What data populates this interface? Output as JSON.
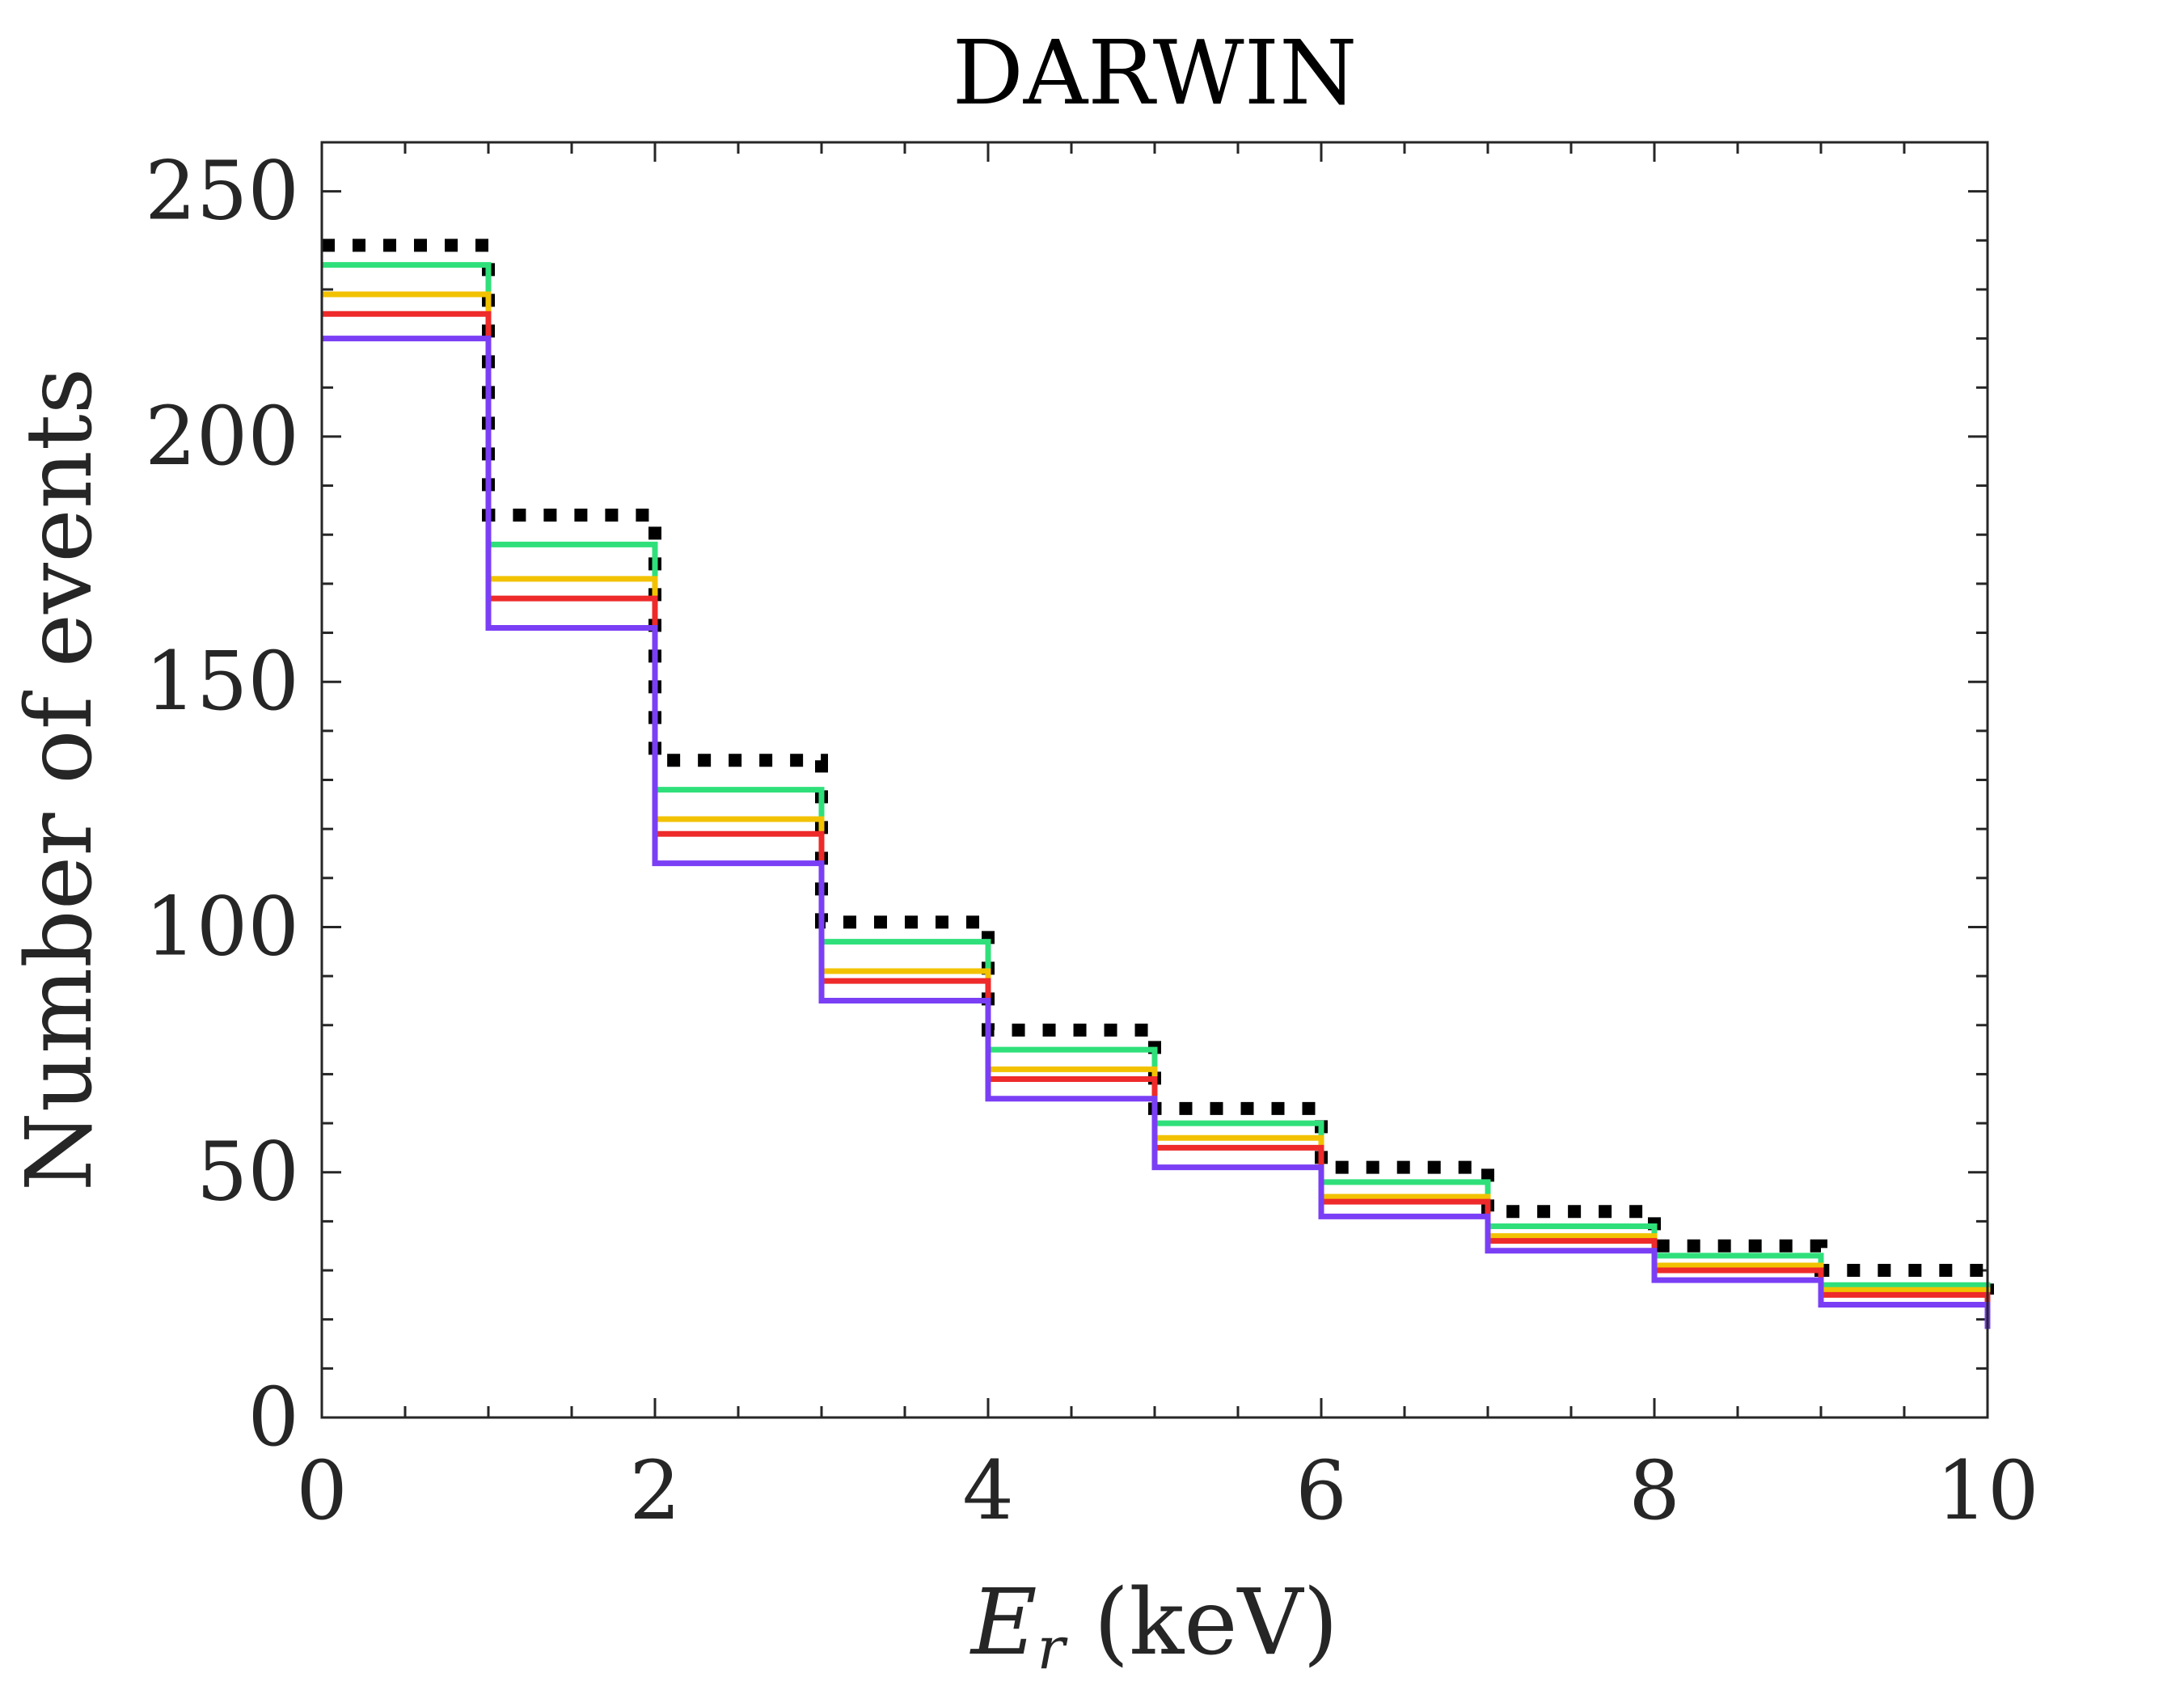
{
  "chart_data": {
    "type": "line",
    "style": "step",
    "title": "DARWIN",
    "xlabel": {
      "var": "E",
      "sub": "r",
      "unit": " (keV)"
    },
    "ylabel": "Number of events",
    "xlim": [
      0,
      10
    ],
    "ylim": [
      0,
      260
    ],
    "xticks": [
      0,
      2,
      4,
      6,
      8,
      10
    ],
    "yticks": [
      0,
      50,
      100,
      150,
      200,
      250
    ],
    "grid": false,
    "bin_edges": [
      0,
      1,
      2,
      3,
      4,
      5,
      6,
      7,
      8,
      9,
      10
    ],
    "series": [
      {
        "name": "dotted-black",
        "color": "#000000",
        "dash": "dotted",
        "values": [
          239,
          184,
          134,
          101,
          79,
          63,
          51,
          42,
          35,
          30
        ]
      },
      {
        "name": "green",
        "color": "#2fe07a",
        "dash": "solid",
        "values": [
          235,
          178,
          128,
          97,
          75,
          60,
          48,
          39,
          33,
          27
        ]
      },
      {
        "name": "yellow",
        "color": "#f2c200",
        "dash": "solid",
        "values": [
          229,
          171,
          122,
          91,
          71,
          57,
          45,
          37,
          31,
          26
        ]
      },
      {
        "name": "red",
        "color": "#ee2a2a",
        "dash": "solid",
        "values": [
          225,
          167,
          119,
          89,
          69,
          55,
          44,
          36,
          30,
          25
        ]
      },
      {
        "name": "purple",
        "color": "#7a3ff5",
        "dash": "solid",
        "values": [
          220,
          161,
          113,
          85,
          65,
          51,
          41,
          34,
          28,
          23
        ]
      }
    ]
  }
}
